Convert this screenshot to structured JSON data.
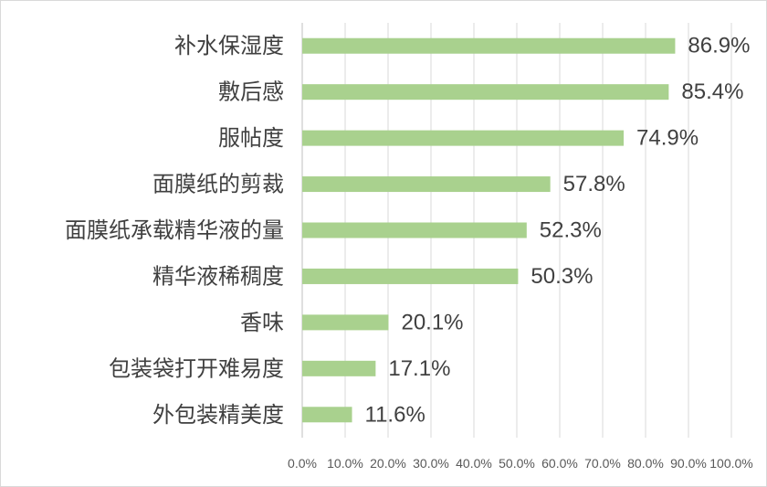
{
  "chart_data": {
    "type": "bar",
    "orientation": "horizontal",
    "categories": [
      "补水保湿度",
      "敷后感",
      "服帖度",
      "面膜纸的剪裁",
      "面膜纸承载精华液的量",
      "精华液稀稠度",
      "香味",
      "包装袋打开难易度",
      "外包装精美度"
    ],
    "values": [
      86.9,
      85.4,
      74.9,
      57.8,
      52.3,
      50.3,
      20.1,
      17.1,
      11.6
    ],
    "data_labels": [
      "86.9%",
      "85.4%",
      "74.9%",
      "57.8%",
      "52.3%",
      "50.3%",
      "20.1%",
      "17.1%",
      "11.6%"
    ],
    "xlim": [
      0,
      100
    ],
    "x_ticks": [
      0,
      10,
      20,
      30,
      40,
      50,
      60,
      70,
      80,
      90,
      100
    ],
    "x_tick_labels": [
      "0.0%",
      "10.0%",
      "20.0%",
      "30.0%",
      "40.0%",
      "50.0%",
      "60.0%",
      "70.0%",
      "80.0%",
      "90.0%",
      "100.0%"
    ],
    "grid": true,
    "legend": "none",
    "bar_color": "#a9d18e",
    "title": "",
    "xlabel": "",
    "ylabel": ""
  }
}
